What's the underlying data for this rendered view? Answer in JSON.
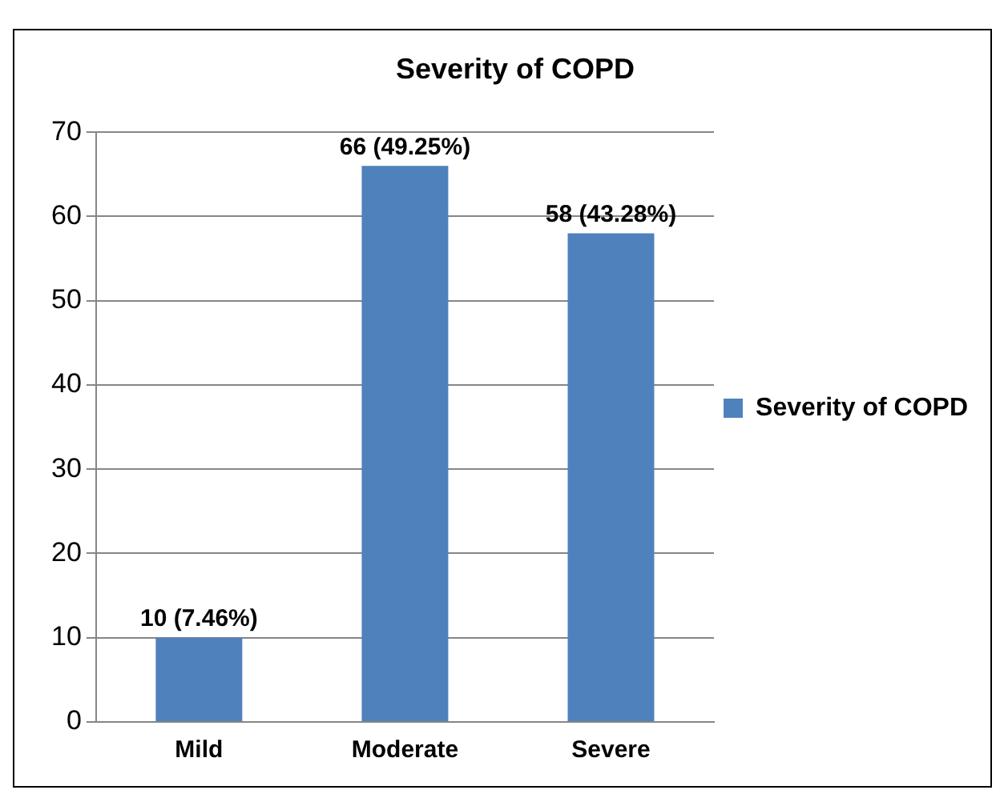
{
  "chart_data": {
    "type": "bar",
    "title": "Severity of COPD",
    "categories": [
      "Mild",
      "Moderate",
      "Severe"
    ],
    "series": [
      {
        "name": "Severity of COPD",
        "color": "#4f81bd",
        "values": [
          10,
          66,
          58
        ],
        "value_labels": [
          "10 (7.46%)",
          "66 (49.25%)",
          "58 (43.28%)"
        ]
      }
    ],
    "ylim": [
      0,
      70
    ],
    "yticks": [
      0,
      10,
      20,
      30,
      40,
      50,
      60,
      70
    ],
    "grid": "y",
    "legend": "right"
  }
}
